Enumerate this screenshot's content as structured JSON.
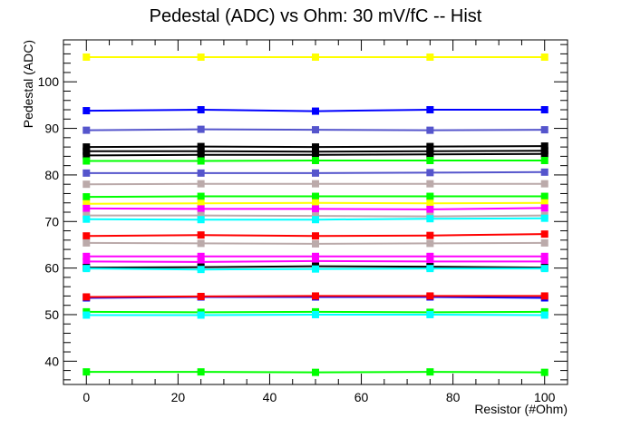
{
  "chart_data": {
    "type": "line",
    "title": "Pedestal (ADC) vs Ohm: 30 mV/fC -- Hist",
    "xlabel": "Resistor (#Ohm)",
    "ylabel": "Pedestal (ADC)",
    "xlim": [
      -5,
      105
    ],
    "ylim": [
      35,
      109
    ],
    "xticks": [
      0,
      20,
      40,
      60,
      80,
      100
    ],
    "yticks": [
      40,
      50,
      60,
      70,
      80,
      90,
      100
    ],
    "grid": false,
    "x": [
      0,
      25,
      50,
      75,
      100
    ],
    "series": [
      {
        "color": "#ffff00",
        "values": [
          105.3,
          105.3,
          105.3,
          105.3,
          105.3
        ]
      },
      {
        "color": "#0000ff",
        "values": [
          93.8,
          94.0,
          93.7,
          94.0,
          94.0
        ]
      },
      {
        "color": "#5555cc",
        "values": [
          89.6,
          89.8,
          89.7,
          89.6,
          89.7
        ]
      },
      {
        "color": "#000000",
        "values": [
          86.0,
          86.1,
          86.0,
          86.1,
          86.2
        ]
      },
      {
        "color": "#000000",
        "values": [
          85.1,
          85.1,
          85.0,
          85.1,
          85.2
        ]
      },
      {
        "color": "#000000",
        "values": [
          84.2,
          84.3,
          84.3,
          84.4,
          84.5
        ]
      },
      {
        "color": "#00ff00",
        "values": [
          83.0,
          83.0,
          83.1,
          83.1,
          83.1
        ]
      },
      {
        "color": "#5555cc",
        "values": [
          80.4,
          80.4,
          80.4,
          80.5,
          80.6
        ]
      },
      {
        "color": "#bbaaaa",
        "values": [
          78.0,
          78.1,
          78.1,
          78.1,
          78.1
        ]
      },
      {
        "color": "#00ff00",
        "values": [
          75.3,
          75.4,
          75.4,
          75.4,
          75.4
        ]
      },
      {
        "color": "#ffff00",
        "values": [
          73.8,
          73.9,
          74.0,
          73.9,
          74.0
        ]
      },
      {
        "color": "#ff00ff",
        "values": [
          72.8,
          72.7,
          72.7,
          72.6,
          72.9
        ]
      },
      {
        "color": "#bbaaaa",
        "values": [
          71.3,
          71.3,
          71.2,
          71.1,
          71.3
        ]
      },
      {
        "color": "#00ffff",
        "values": [
          70.5,
          70.4,
          70.4,
          70.6,
          70.7
        ]
      },
      {
        "color": "#ff0000",
        "values": [
          66.9,
          67.1,
          66.9,
          67.0,
          67.3
        ]
      },
      {
        "color": "#bbaaaa",
        "values": [
          65.4,
          65.3,
          65.2,
          65.3,
          65.4
        ]
      },
      {
        "color": "#ff00ff",
        "values": [
          62.5,
          62.5,
          62.5,
          62.5,
          62.5
        ]
      },
      {
        "color": "#ff00ff",
        "values": [
          61.4,
          61.3,
          61.5,
          61.4,
          61.4
        ]
      },
      {
        "color": "#000000",
        "values": [
          60.1,
          60.2,
          60.4,
          60.3,
          60.1
        ]
      },
      {
        "color": "#00ffff",
        "values": [
          59.9,
          59.7,
          59.8,
          59.9,
          59.9
        ]
      },
      {
        "color": "#0000ff",
        "values": [
          53.6,
          53.8,
          53.8,
          53.8,
          53.6
        ]
      },
      {
        "color": "#ff0000",
        "values": [
          53.8,
          53.9,
          54.0,
          54.0,
          54.0
        ]
      },
      {
        "color": "#00ff00",
        "values": [
          50.6,
          50.5,
          50.6,
          50.5,
          50.6
        ]
      },
      {
        "color": "#00ffff",
        "values": [
          49.9,
          49.9,
          50.0,
          50.0,
          49.9
        ]
      },
      {
        "color": "#00ff00",
        "values": [
          37.7,
          37.7,
          37.6,
          37.7,
          37.6
        ]
      }
    ]
  }
}
